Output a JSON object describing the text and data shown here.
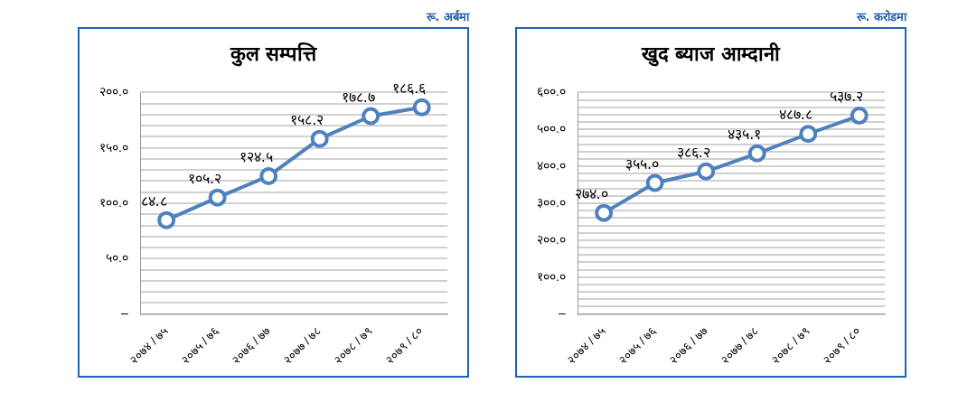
{
  "chart_data": [
    {
      "type": "line",
      "title": "कुल सम्पत्ति",
      "subtitle": "रू. अर्बमा",
      "categories": [
        "२०७४ / ७५",
        "२०७५ / ७६",
        "२०७६ / ७७",
        "२०७७ / ७८",
        "२०७८ / ७९",
        "२०७९ / ८०"
      ],
      "series": [
        {
          "color": "#4f81bd",
          "values": [
            84.8,
            105.2,
            124.5,
            158.2,
            178.7,
            186.6
          ],
          "value_labels": [
            "८४.८",
            "१०५.२",
            "१२४.५",
            "१५८.२",
            "१७८.७",
            "१८६.६"
          ]
        }
      ],
      "ylim": [
        0,
        200
      ],
      "yticks": [
        {
          "value": 0,
          "label": "–"
        },
        {
          "value": 10,
          "label": null
        },
        {
          "value": 20,
          "label": null
        },
        {
          "value": 30,
          "label": null
        },
        {
          "value": 40,
          "label": null
        },
        {
          "value": 50,
          "label": "५०.०"
        },
        {
          "value": 60,
          "label": null
        },
        {
          "value": 70,
          "label": null
        },
        {
          "value": 80,
          "label": null
        },
        {
          "value": 90,
          "label": null
        },
        {
          "value": 100,
          "label": "१००.०"
        },
        {
          "value": 110,
          "label": null
        },
        {
          "value": 120,
          "label": null
        },
        {
          "value": 130,
          "label": null
        },
        {
          "value": 140,
          "label": null
        },
        {
          "value": 150,
          "label": "१५०.०"
        },
        {
          "value": 160,
          "label": null
        },
        {
          "value": 170,
          "label": null
        },
        {
          "value": 180,
          "label": null
        },
        {
          "value": 190,
          "label": null
        },
        {
          "value": 200,
          "label": "२००.०"
        }
      ],
      "grid": "y",
      "legend": false,
      "marker": "circle",
      "line_style": "solid"
    },
    {
      "type": "line",
      "title": "खुद ब्याज आम्दानी",
      "subtitle": "रू. करोडमा",
      "categories": [
        "२०७४ / ७५",
        "२०७५ / ७६",
        "२०७६ / ७७",
        "२०७७ / ७८",
        "२०७८ / ७९",
        "२०७९ / ८०"
      ],
      "series": [
        {
          "color": "#4f81bd",
          "values": [
            274.0,
            355.0,
            386.2,
            435.1,
            487.8,
            537.2
          ],
          "value_labels": [
            "२७४.०",
            "३५५.०",
            "३८६.२",
            "४३५.१",
            "४८७.८",
            "५३७.२"
          ]
        }
      ],
      "ylim": [
        0,
        600
      ],
      "yticks": [
        {
          "value": 0,
          "label": "–"
        },
        {
          "value": 20,
          "label": null
        },
        {
          "value": 40,
          "label": null
        },
        {
          "value": 60,
          "label": null
        },
        {
          "value": 80,
          "label": null
        },
        {
          "value": 100,
          "label": "१००.०"
        },
        {
          "value": 120,
          "label": null
        },
        {
          "value": 140,
          "label": null
        },
        {
          "value": 160,
          "label": null
        },
        {
          "value": 180,
          "label": null
        },
        {
          "value": 200,
          "label": "२००.०"
        },
        {
          "value": 220,
          "label": null
        },
        {
          "value": 240,
          "label": null
        },
        {
          "value": 260,
          "label": null
        },
        {
          "value": 280,
          "label": null
        },
        {
          "value": 300,
          "label": "३००.०"
        },
        {
          "value": 320,
          "label": null
        },
        {
          "value": 340,
          "label": null
        },
        {
          "value": 360,
          "label": null
        },
        {
          "value": 380,
          "label": null
        },
        {
          "value": 400,
          "label": "४००.०"
        },
        {
          "value": 420,
          "label": null
        },
        {
          "value": 440,
          "label": null
        },
        {
          "value": 460,
          "label": null
        },
        {
          "value": 480,
          "label": null
        },
        {
          "value": 500,
          "label": "५००.०"
        },
        {
          "value": 520,
          "label": null
        },
        {
          "value": 540,
          "label": null
        },
        {
          "value": 560,
          "label": null
        },
        {
          "value": 580,
          "label": null
        },
        {
          "value": 600,
          "label": "६००.०"
        }
      ],
      "grid": "y",
      "legend": false,
      "marker": "circle",
      "line_style": "solid"
    }
  ]
}
